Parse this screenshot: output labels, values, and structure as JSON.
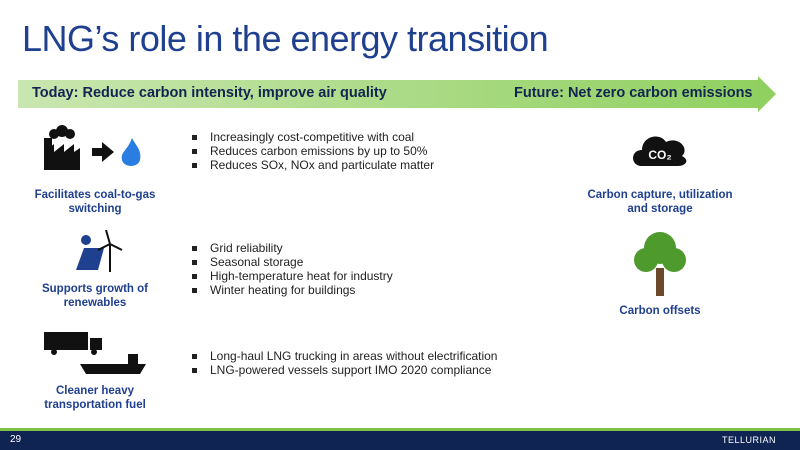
{
  "header": {
    "title": "LNG’s role in the energy transition"
  },
  "banner": {
    "today": "Today: Reduce carbon intensity, improve air quality",
    "future": "Future: Net zero carbon emissions"
  },
  "rows": [
    {
      "label": "Facilitates coal-to-gas switching",
      "bullets": [
        "Increasingly cost-competitive with coal",
        "Reduces carbon emissions by up to 50%",
        "Reduces SOx, NOx and particulate matter"
      ]
    },
    {
      "label": "Supports growth of renewables",
      "bullets": [
        "Grid reliability",
        "Seasonal storage",
        "High-temperature heat for industry",
        "Winter heating for buildings"
      ]
    },
    {
      "label": "Cleaner heavy transportation fuel",
      "bullets": [
        "Long-haul LNG trucking in areas without electrification",
        "LNG-powered vessels support IMO 2020 compliance"
      ]
    }
  ],
  "future": [
    {
      "icon_text": "CO₂",
      "label": "Carbon capture, utilization and storage"
    },
    {
      "label": "Carbon offsets"
    }
  ],
  "footer": {
    "page": "29",
    "logo": "TELLURIAN"
  }
}
